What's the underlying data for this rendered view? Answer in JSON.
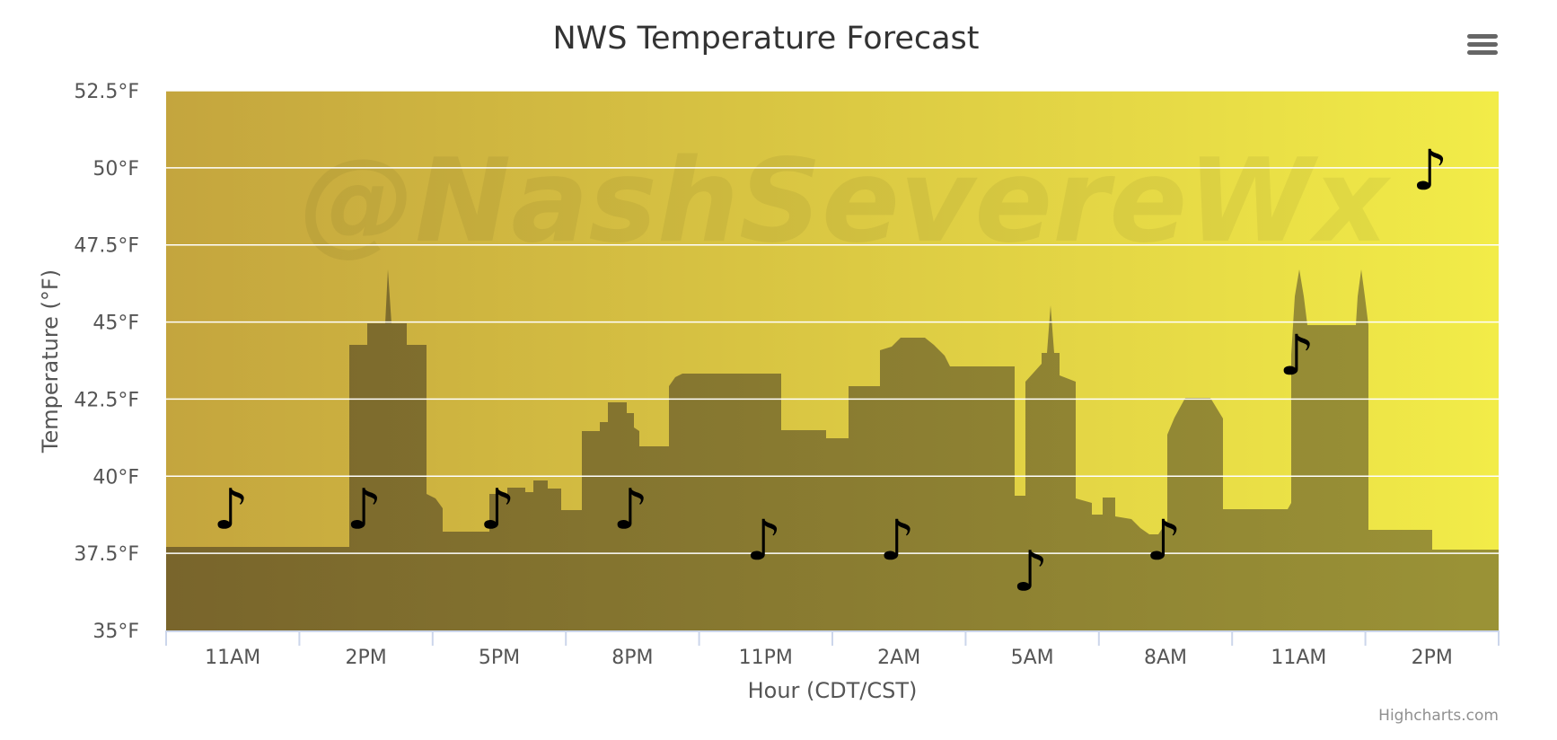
{
  "chart_data": {
    "type": "scatter",
    "title": "NWS Temperature Forecast",
    "xlabel": "Hour (CDT/CST)",
    "ylabel": "Temperature (°F)",
    "x_tick_labels": [
      "11AM",
      "2PM",
      "5PM",
      "8PM",
      "11PM",
      "2AM",
      "5AM",
      "8AM",
      "11AM",
      "2PM"
    ],
    "y_ticks": [
      35,
      37.5,
      40,
      42.5,
      45,
      47.5,
      50,
      52.5
    ],
    "y_tick_labels": [
      "35°F",
      "37.5°F",
      "40°F",
      "42.5°F",
      "45°F",
      "47.5°F",
      "50°F",
      "52.5°F"
    ],
    "ylim": [
      35,
      52.5
    ],
    "grid": true,
    "watermark": "@NashSevereWx",
    "credits": "Highcharts.com",
    "marker_symbol": "♪",
    "series": [
      {
        "x": [
          "11AM",
          "2PM",
          "5PM",
          "8PM",
          "11PM",
          "2AM",
          "5AM",
          "8AM",
          "11AM",
          "2PM"
        ],
        "values": [
          39,
          39,
          39,
          39,
          38,
          38,
          37,
          38,
          44,
          50
        ]
      }
    ],
    "colors": {
      "background_start": "#c4a53e",
      "background_end": "#f2ec48",
      "skyline_start": "#73602a",
      "skyline_end": "#948c35",
      "text": "#555555",
      "title": "#333333",
      "grid": "#ffffff"
    }
  },
  "ui": {
    "menu_icon": "hamburger-menu-icon"
  }
}
